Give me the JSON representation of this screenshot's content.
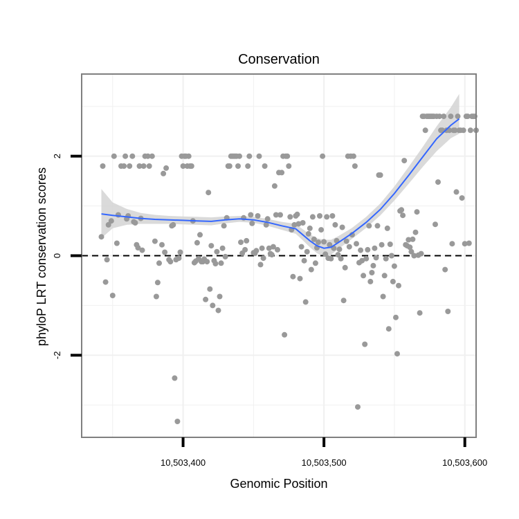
{
  "chart_data": {
    "type": "scatter",
    "title": "Conservation",
    "xlabel": "Genomic Position",
    "ylabel": "phyloP LRT conservation scores",
    "xlim": [
      10503328,
      10503608
    ],
    "ylim": [
      -3.65,
      3.65
    ],
    "x_ticks": [
      10503400,
      10503500,
      10503600
    ],
    "x_tick_labels": [
      "10,503,400",
      "10,503,500",
      "10,503,600"
    ],
    "y_ticks": [
      -2,
      0,
      2
    ],
    "y_tick_labels": [
      "-2",
      "0",
      "2"
    ],
    "reference_line": {
      "y": 0,
      "style": "dashed"
    },
    "grid": true,
    "colors": {
      "points": "#999999",
      "smooth": "#3366ff",
      "band": "#d3d3d3",
      "panel_border": "#7f7f7f"
    },
    "points": [
      [
        10503342,
        0.38
      ],
      [
        10503343,
        1.8
      ],
      [
        10503345,
        -0.53
      ],
      [
        10503346,
        -0.08
      ],
      [
        10503347,
        0.62
      ],
      [
        10503349,
        0.7
      ],
      [
        10503350,
        -0.8
      ],
      [
        10503351,
        2.0
      ],
      [
        10503353,
        0.25
      ],
      [
        10503354,
        0.82
      ],
      [
        10503356,
        1.8
      ],
      [
        10503358,
        1.8
      ],
      [
        10503359,
        2.0
      ],
      [
        10503360,
        0.74
      ],
      [
        10503361,
        0.8
      ],
      [
        10503362,
        1.8
      ],
      [
        10503364,
        2.0
      ],
      [
        10503365,
        0.68
      ],
      [
        10503366,
        0.66
      ],
      [
        10503367,
        0.22
      ],
      [
        10503368,
        0.16
      ],
      [
        10503369,
        1.8
      ],
      [
        10503370,
        0.75
      ],
      [
        10503371,
        0.11
      ],
      [
        10503372,
        1.8
      ],
      [
        10503373,
        2.0
      ],
      [
        10503375,
        2.0
      ],
      [
        10503376,
        1.8
      ],
      [
        10503378,
        2.0
      ],
      [
        10503380,
        0.29
      ],
      [
        10503381,
        -0.82
      ],
      [
        10503382,
        -0.54
      ],
      [
        10503383,
        -0.15
      ],
      [
        10503385,
        0.22
      ],
      [
        10503386,
        1.65
      ],
      [
        10503387,
        0.07
      ],
      [
        10503388,
        1.76
      ],
      [
        10503390,
        -0.08
      ],
      [
        10503391,
        -0.12
      ],
      [
        10503392,
        0.6
      ],
      [
        10503393,
        0.62
      ],
      [
        10503394,
        -2.46
      ],
      [
        10503395,
        -0.08
      ],
      [
        10503396,
        -3.33
      ],
      [
        10503397,
        -0.05
      ],
      [
        10503398,
        0.07
      ],
      [
        10503399,
        2.0
      ],
      [
        10503400,
        1.8
      ],
      [
        10503401,
        2.0
      ],
      [
        10503402,
        2.0
      ],
      [
        10503403,
        1.8
      ],
      [
        10503404,
        2.0
      ],
      [
        10503405,
        1.8
      ],
      [
        10503406,
        1.8
      ],
      [
        10503407,
        0.7
      ],
      [
        10503408,
        -0.14
      ],
      [
        10503409,
        -0.11
      ],
      [
        10503410,
        0.26
      ],
      [
        10503411,
        -0.06
      ],
      [
        10503412,
        0.42
      ],
      [
        10503413,
        -0.12
      ],
      [
        10503414,
        -0.12
      ],
      [
        10503415,
        -0.07
      ],
      [
        10503416,
        -0.88
      ],
      [
        10503417,
        -0.12
      ],
      [
        10503418,
        1.27
      ],
      [
        10503419,
        -0.67
      ],
      [
        10503420,
        0.2
      ],
      [
        10503421,
        -1.0
      ],
      [
        10503422,
        -0.1
      ],
      [
        10503423,
        -0.16
      ],
      [
        10503424,
        0.08
      ],
      [
        10503425,
        -1.1
      ],
      [
        10503426,
        -0.82
      ],
      [
        10503427,
        -0.15
      ],
      [
        10503428,
        0.15
      ],
      [
        10503429,
        0.6
      ],
      [
        10503430,
        -0.02
      ],
      [
        10503431,
        0.76
      ],
      [
        10503432,
        1.8
      ],
      [
        10503433,
        1.8
      ],
      [
        10503434,
        2.0
      ],
      [
        10503435,
        2.0
      ],
      [
        10503436,
        2.0
      ],
      [
        10503437,
        2.0
      ],
      [
        10503438,
        2.0
      ],
      [
        10503439,
        1.8
      ],
      [
        10503440,
        2.0
      ],
      [
        10503441,
        0.27
      ],
      [
        10503442,
        0.05
      ],
      [
        10503443,
        0.76
      ],
      [
        10503444,
        0.12
      ],
      [
        10503445,
        0.3
      ],
      [
        10503446,
        1.8
      ],
      [
        10503447,
        2.0
      ],
      [
        10503448,
        0.82
      ],
      [
        10503449,
        0.65
      ],
      [
        10503450,
        0.06
      ],
      [
        10503451,
        0.05
      ],
      [
        10503452,
        0.1
      ],
      [
        10503453,
        0.8
      ],
      [
        10503454,
        2.0
      ],
      [
        10503455,
        -0.18
      ],
      [
        10503456,
        0.15
      ],
      [
        10503457,
        -0.05
      ],
      [
        10503458,
        1.8
      ],
      [
        10503459,
        0.62
      ],
      [
        10503460,
        0.74
      ],
      [
        10503461,
        0.15
      ],
      [
        10503462,
        0.04
      ],
      [
        10503463,
        0.02
      ],
      [
        10503464,
        0.18
      ],
      [
        10503465,
        1.4
      ],
      [
        10503466,
        0.82
      ],
      [
        10503467,
        0.12
      ],
      [
        10503468,
        1.67
      ],
      [
        10503469,
        0.82
      ],
      [
        10503470,
        1.67
      ],
      [
        10503471,
        2.0
      ],
      [
        10503472,
        -1.59
      ],
      [
        10503473,
        2.0
      ],
      [
        10503474,
        2.0
      ],
      [
        10503475,
        1.8
      ],
      [
        10503476,
        0.78
      ],
      [
        10503477,
        0.52
      ],
      [
        10503478,
        -0.42
      ],
      [
        10503479,
        0.62
      ],
      [
        10503480,
        0.8
      ],
      [
        10503481,
        0.83
      ],
      [
        10503482,
        0.64
      ],
      [
        10503483,
        -0.46
      ],
      [
        10503484,
        0.18
      ],
      [
        10503485,
        0.66
      ],
      [
        10503486,
        -0.1
      ],
      [
        10503487,
        -0.93
      ],
      [
        10503488,
        0.08
      ],
      [
        10503489,
        0.44
      ],
      [
        10503490,
        0.55
      ],
      [
        10503491,
        -0.28
      ],
      [
        10503492,
        0.78
      ],
      [
        10503493,
        0.33
      ],
      [
        10503494,
        -0.15
      ],
      [
        10503495,
        0.16
      ],
      [
        10503496,
        0.27
      ],
      [
        10503497,
        0.8
      ],
      [
        10503498,
        0.52
      ],
      [
        10503499,
        2.0
      ],
      [
        10503500,
        0.28
      ],
      [
        10503501,
        0.03
      ],
      [
        10503502,
        0.78
      ],
      [
        10503503,
        -0.05
      ],
      [
        10503504,
        0.22
      ],
      [
        10503505,
        -0.06
      ],
      [
        10503506,
        0.8
      ],
      [
        10503507,
        0.15
      ],
      [
        10503508,
        0.62
      ],
      [
        10503509,
        0.3
      ],
      [
        10503510,
        0.02
      ],
      [
        10503511,
        0.13
      ],
      [
        10503512,
        -0.06
      ],
      [
        10503513,
        0.57
      ],
      [
        10503514,
        -0.9
      ],
      [
        10503515,
        -0.24
      ],
      [
        10503516,
        0.29
      ],
      [
        10503517,
        2.0
      ],
      [
        10503518,
        0.18
      ],
      [
        10503519,
        2.0
      ],
      [
        10503520,
        0.42
      ],
      [
        10503521,
        2.0
      ],
      [
        10503522,
        1.8
      ],
      [
        10503523,
        0.24
      ],
      [
        10503524,
        -3.04
      ],
      [
        10503525,
        -0.14
      ],
      [
        10503526,
        0.11
      ],
      [
        10503527,
        -0.1
      ],
      [
        10503528,
        -0.4
      ],
      [
        10503529,
        -1.78
      ],
      [
        10503530,
        -0.06
      ],
      [
        10503531,
        0.12
      ],
      [
        10503532,
        0.6
      ],
      [
        10503533,
        -0.52
      ],
      [
        10503534,
        -0.34
      ],
      [
        10503535,
        -0.2
      ],
      [
        10503536,
        0.15
      ],
      [
        10503537,
        -0.04
      ],
      [
        10503538,
        0.6
      ],
      [
        10503539,
        1.62
      ],
      [
        10503540,
        1.62
      ],
      [
        10503541,
        0.22
      ],
      [
        10503542,
        -0.82
      ],
      [
        10503543,
        -0.4
      ],
      [
        10503544,
        -0.06
      ],
      [
        10503545,
        0.55
      ],
      [
        10503546,
        -1.47
      ],
      [
        10503547,
        0.23
      ],
      [
        10503548,
        0.0
      ],
      [
        10503549,
        -0.52
      ],
      [
        10503550,
        -0.21
      ],
      [
        10503551,
        -1.24
      ],
      [
        10503552,
        -1.97
      ],
      [
        10503553,
        -0.6
      ],
      [
        10503554,
        0.9
      ],
      [
        10503555,
        0.92
      ],
      [
        10503556,
        0.81
      ],
      [
        10503557,
        1.91
      ],
      [
        10503558,
        0.22
      ],
      [
        10503559,
        0.2
      ],
      [
        10503560,
        0.32
      ],
      [
        10503561,
        0.17
      ],
      [
        10503562,
        0.08
      ],
      [
        10503563,
        0.33
      ],
      [
        10503564,
        0.0
      ],
      [
        10503565,
        0.47
      ],
      [
        10503566,
        0.88
      ],
      [
        10503567,
        0.01
      ],
      [
        10503568,
        -1.15
      ],
      [
        10503569,
        0.04
      ],
      [
        10503570,
        2.8
      ],
      [
        10503571,
        2.8
      ],
      [
        10503572,
        2.52
      ],
      [
        10503573,
        2.8
      ],
      [
        10503574,
        2.8
      ],
      [
        10503575,
        2.8
      ],
      [
        10503576,
        2.8
      ],
      [
        10503577,
        2.8
      ],
      [
        10503578,
        2.8
      ],
      [
        10503579,
        0.63
      ],
      [
        10503580,
        2.8
      ],
      [
        10503581,
        1.48
      ],
      [
        10503582,
        2.8
      ],
      [
        10503583,
        2.52
      ],
      [
        10503584,
        2.52
      ],
      [
        10503585,
        2.8
      ],
      [
        10503586,
        -0.28
      ],
      [
        10503587,
        2.52
      ],
      [
        10503588,
        -1.12
      ],
      [
        10503589,
        2.52
      ],
      [
        10503590,
        2.8
      ],
      [
        10503591,
        0.24
      ],
      [
        10503592,
        2.52
      ],
      [
        10503593,
        2.52
      ],
      [
        10503594,
        1.28
      ],
      [
        10503595,
        2.8
      ],
      [
        10503596,
        2.52
      ],
      [
        10503597,
        2.52
      ],
      [
        10503598,
        1.16
      ],
      [
        10503599,
        2.52
      ],
      [
        10503600,
        0.24
      ],
      [
        10503601,
        2.8
      ],
      [
        10503602,
        2.8
      ],
      [
        10503603,
        0.25
      ],
      [
        10503604,
        2.52
      ],
      [
        10503605,
        2.8
      ],
      [
        10503606,
        2.8
      ],
      [
        10503607,
        2.8
      ],
      [
        10503608,
        2.52
      ]
    ],
    "smooth": {
      "x": [
        10503342,
        10503350,
        10503360,
        10503370,
        10503380,
        10503390,
        10503400,
        10503410,
        10503420,
        10503430,
        10503440,
        10503450,
        10503460,
        10503470,
        10503480,
        10503485,
        10503490,
        10503495,
        10503500,
        10503505,
        10503510,
        10503520,
        10503530,
        10503540,
        10503550,
        10503560,
        10503570,
        10503580,
        10503590,
        10503596
      ],
      "y": [
        0.84,
        0.81,
        0.78,
        0.75,
        0.73,
        0.72,
        0.71,
        0.7,
        0.69,
        0.72,
        0.74,
        0.72,
        0.67,
        0.6,
        0.54,
        0.42,
        0.3,
        0.2,
        0.15,
        0.17,
        0.26,
        0.45,
        0.67,
        0.93,
        1.25,
        1.61,
        1.98,
        2.35,
        2.62,
        2.75
      ],
      "lower": [
        0.35,
        0.55,
        0.62,
        0.64,
        0.64,
        0.64,
        0.63,
        0.62,
        0.61,
        0.65,
        0.68,
        0.66,
        0.6,
        0.52,
        0.44,
        0.31,
        0.17,
        0.05,
        -0.02,
        0.02,
        0.13,
        0.34,
        0.56,
        0.81,
        1.11,
        1.44,
        1.78,
        2.1,
        2.36,
        2.45
      ],
      "upper": [
        1.34,
        1.07,
        0.94,
        0.86,
        0.82,
        0.8,
        0.79,
        0.78,
        0.77,
        0.79,
        0.8,
        0.78,
        0.74,
        0.68,
        0.64,
        0.53,
        0.43,
        0.35,
        0.32,
        0.32,
        0.39,
        0.56,
        0.78,
        1.05,
        1.39,
        1.78,
        2.18,
        2.6,
        2.98,
        3.25
      ]
    }
  }
}
